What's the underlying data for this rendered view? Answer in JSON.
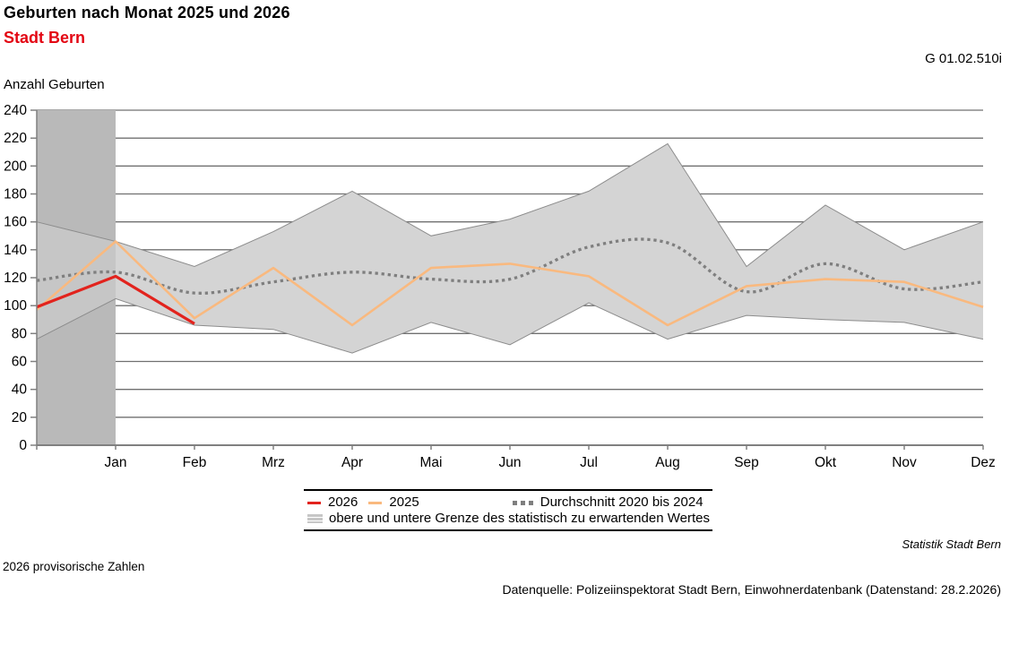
{
  "header": {
    "title": "Geburten nach Monat 2025 und 2026",
    "subtitle": "Stadt Bern",
    "subtitle_color": "#e30613",
    "figure_id": "G 01.02.510i"
  },
  "chart_data": {
    "type": "line",
    "title": "Geburten nach Monat 2025 und 2026",
    "subtitle": "Stadt Bern",
    "ylabel": "Anzahl Geburten",
    "xlabel": "",
    "ylim": [
      0,
      240
    ],
    "yticks": [
      0,
      20,
      40,
      60,
      80,
      100,
      120,
      140,
      160,
      180,
      200,
      220,
      240
    ],
    "categories": [
      "Jan",
      "Feb",
      "Mrz",
      "Apr",
      "Mai",
      "Jun",
      "Jul",
      "Aug",
      "Sep",
      "Okt",
      "Nov",
      "Dez"
    ],
    "x_note": "Each full series has 13 points: the first sits on the left plot edge (one month before Jan), followed by one point per month tick.",
    "grid": "horizontal",
    "gridline_color": "#707070",
    "axis_color": "#808080",
    "legend_position": "bottom-center",
    "series": [
      {
        "name": "2026",
        "color": "#e2231d",
        "style": "solid",
        "values": [
          99,
          121,
          87
        ]
      },
      {
        "name": "2025",
        "color": "#f9b97f",
        "style": "solid",
        "values": [
          97,
          146,
          91,
          127,
          86,
          127,
          130,
          121,
          86,
          114,
          119,
          117,
          99
        ]
      },
      {
        "name": "Durchschnitt 2020 bis 2024",
        "color": "#7f7f7f",
        "style": "dotted-smooth",
        "values": [
          118,
          124,
          109,
          117,
          124,
          119,
          119,
          142,
          145,
          110,
          130,
          112,
          117
        ]
      }
    ],
    "band": {
      "name": "obere und untere Grenze des statistisch zu erwartenden Wertes",
      "fill": "#d4d4d4",
      "edge": "#8c8c8c",
      "upper": [
        160,
        146,
        128,
        153,
        182,
        150,
        162,
        182,
        216,
        128,
        172,
        140,
        160
      ],
      "lower": [
        76,
        105,
        86,
        83,
        66,
        88,
        72,
        102,
        76,
        93,
        90,
        88,
        76
      ]
    },
    "highlight_column": {
      "color": "#b9b9b9",
      "from_point": 0,
      "to_point": 1
    }
  },
  "footnotes": {
    "provisional": "2026 provisorische Zahlen",
    "brand": "Statistik Stadt Bern",
    "source": "Datenquelle: Polizeiinspektorat Stadt Bern, Einwohnerdatenbank (Datenstand: 28.2.2026)"
  }
}
